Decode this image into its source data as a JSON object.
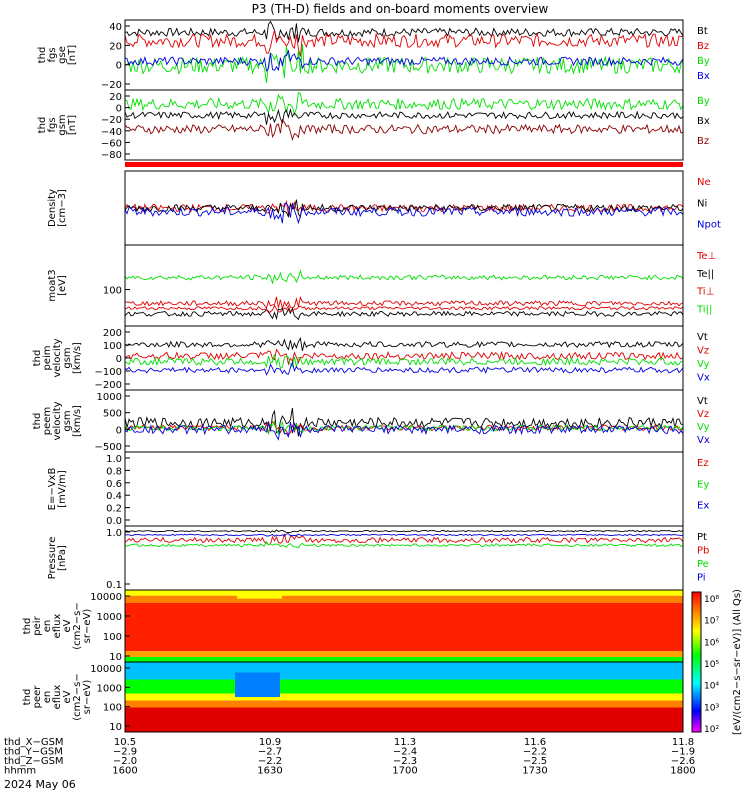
{
  "title": "P3 (TH-D) fields and on-board moments overview",
  "date_label": "2024 May 06",
  "colors": {
    "black": "#000000",
    "red": "#e00000",
    "green": "#00e000",
    "blue": "#0000e0",
    "darkred": "#8b0000",
    "bar": "#ff0000"
  },
  "chart_data": [
    {
      "type": "line",
      "ylabel": [
        "thd",
        "fgs",
        "gse",
        "[nT]"
      ],
      "yticks": [
        "40",
        "20",
        "0",
        "−20"
      ],
      "ylim": [
        -30,
        55
      ],
      "series": [
        {
          "name": "Bt",
          "color": "black",
          "base": 40,
          "noise": 5
        },
        {
          "name": "Bz",
          "color": "red",
          "base": 30,
          "noise": 8
        },
        {
          "name": "By",
          "color": "green",
          "base": 0,
          "noise": 10
        },
        {
          "name": "Bx",
          "color": "blue",
          "base": 5,
          "noise": 5
        }
      ]
    },
    {
      "type": "line",
      "ylabel": [
        "thd",
        "fgs",
        "gsm",
        "[nT]"
      ],
      "yticks": [
        "20",
        "0",
        "−20",
        "−40",
        "−60",
        "−80"
      ],
      "ylim": [
        -90,
        35
      ],
      "series": [
        {
          "name": "By",
          "color": "green",
          "base": 10,
          "noise": 10
        },
        {
          "name": "Bx",
          "color": "black",
          "base": -10,
          "noise": 6
        },
        {
          "name": "Bz",
          "color": "darkred",
          "base": -35,
          "noise": 8
        }
      ]
    },
    {
      "type": "line",
      "ylabel": [
        "Density",
        "[cm−3]"
      ],
      "yticks": [],
      "ylim": [
        0,
        1
      ],
      "series": [
        {
          "name": "Ne",
          "color": "red",
          "base": 0.5,
          "noise": 0.05
        },
        {
          "name": "Ni",
          "color": "black",
          "base": 0.5,
          "noise": 0.05
        },
        {
          "name": "Npot",
          "color": "blue",
          "base": 0.45,
          "noise": 0.06
        }
      ]
    },
    {
      "type": "line",
      "ylabel": [
        "moat3",
        "[eV]"
      ],
      "yticks": [
        "100"
      ],
      "ylim": [
        0,
        1
      ],
      "series": [
        {
          "name": "Te⊥",
          "color": "red",
          "base": 0.28,
          "noise": 0.03
        },
        {
          "name": "Te||",
          "color": "black",
          "base": 0.15,
          "noise": 0.03
        },
        {
          "name": "Ti⊥",
          "color": "red",
          "base": 0.22,
          "noise": 0.02
        },
        {
          "name": "Ti||",
          "color": "green",
          "base": 0.6,
          "noise": 0.03
        }
      ]
    },
    {
      "type": "line",
      "ylabel": [
        "thd",
        "peim",
        "velocity",
        "gsm",
        "[km/s]"
      ],
      "yticks": [
        "200",
        "100",
        "0",
        "−100",
        "−200"
      ],
      "ylim": [
        -220,
        230
      ],
      "series": [
        {
          "name": "Vt",
          "color": "black",
          "base": 100,
          "noise": 20
        },
        {
          "name": "Vz",
          "color": "red",
          "base": 20,
          "noise": 25
        },
        {
          "name": "Vy",
          "color": "green",
          "base": -20,
          "noise": 25
        },
        {
          "name": "Vx",
          "color": "blue",
          "base": -80,
          "noise": 20
        }
      ]
    },
    {
      "type": "line",
      "ylabel": [
        "thd",
        "peem",
        "velocity",
        "gsm",
        "[km/s]"
      ],
      "yticks": [
        "1000",
        "500",
        "0",
        "−500"
      ],
      "ylim": [
        -700,
        1100
      ],
      "series": [
        {
          "name": "Vt",
          "color": "black",
          "base": 150,
          "noise": 150
        },
        {
          "name": "Vz",
          "color": "red",
          "base": 0,
          "noise": 80
        },
        {
          "name": "Vy",
          "color": "green",
          "base": 0,
          "noise": 80
        },
        {
          "name": "Vx",
          "color": "blue",
          "base": -50,
          "noise": 120
        }
      ]
    },
    {
      "type": "line",
      "ylabel": [
        "E=−VxB",
        "[mV/m]"
      ],
      "yticks": [
        "1.0",
        "0.8",
        "0.6",
        "0.4",
        "0.2",
        "0.0"
      ],
      "ylim": [
        -0.05,
        1.05
      ],
      "series": [
        {
          "name": "Ez",
          "color": "red",
          "base": null,
          "noise": 0
        },
        {
          "name": "Ey",
          "color": "green",
          "base": null,
          "noise": 0
        },
        {
          "name": "Ex",
          "color": "blue",
          "base": null,
          "noise": 0
        }
      ]
    },
    {
      "type": "line",
      "ylabel": [
        "Pressure",
        "[nPa]"
      ],
      "yticks": [
        "1.0",
        "0.1"
      ],
      "ylim": [
        0,
        1
      ],
      "series": [
        {
          "name": "Pt",
          "color": "black",
          "base": 0.92,
          "noise": 0.01
        },
        {
          "name": "Pb",
          "color": "red",
          "base": 0.78,
          "noise": 0.04
        },
        {
          "name": "Pe",
          "color": "green",
          "base": 0.7,
          "noise": 0.02
        },
        {
          "name": "Pi",
          "color": "blue",
          "base": 0.86,
          "noise": 0.01
        }
      ]
    },
    {
      "type": "heatmap",
      "ylabel": [
        "thd",
        "peir",
        "en",
        "eflux",
        "eV",
        "(cm2−s−",
        "sr−eV)"
      ],
      "yticks": [
        "10000",
        "1000",
        "100",
        "10"
      ]
    },
    {
      "type": "heatmap",
      "ylabel": [
        "thd",
        "peer",
        "en",
        "eflux",
        "eV",
        "(cm2−s−",
        "sr−eV)"
      ],
      "yticks": [
        "10000",
        "1000",
        "100",
        "10"
      ]
    }
  ],
  "colorbar": {
    "label": "[eV/(cm2−s−sr−eV)] (All Qs)",
    "ticks": [
      "10⁸",
      "10⁷",
      "10⁶",
      "10⁵",
      "10⁴",
      "10³",
      "10²"
    ]
  },
  "xaxis": {
    "rows": [
      {
        "label": "thd_X−GSM",
        "values": [
          "10.5",
          "10.9",
          "11.3",
          "11.6",
          "11.8"
        ]
      },
      {
        "label": "thd_Y−GSM",
        "values": [
          "−2.9",
          "−2.7",
          "−2.4",
          "−2.2",
          "−1.9"
        ]
      },
      {
        "label": "thd_Z−GSM",
        "values": [
          "−2.0",
          "−2.2",
          "−2.3",
          "−2.5",
          "−2.6"
        ]
      },
      {
        "label": "hhmm",
        "values": [
          "1600",
          "1630",
          "1700",
          "1730",
          "1800"
        ]
      }
    ]
  }
}
